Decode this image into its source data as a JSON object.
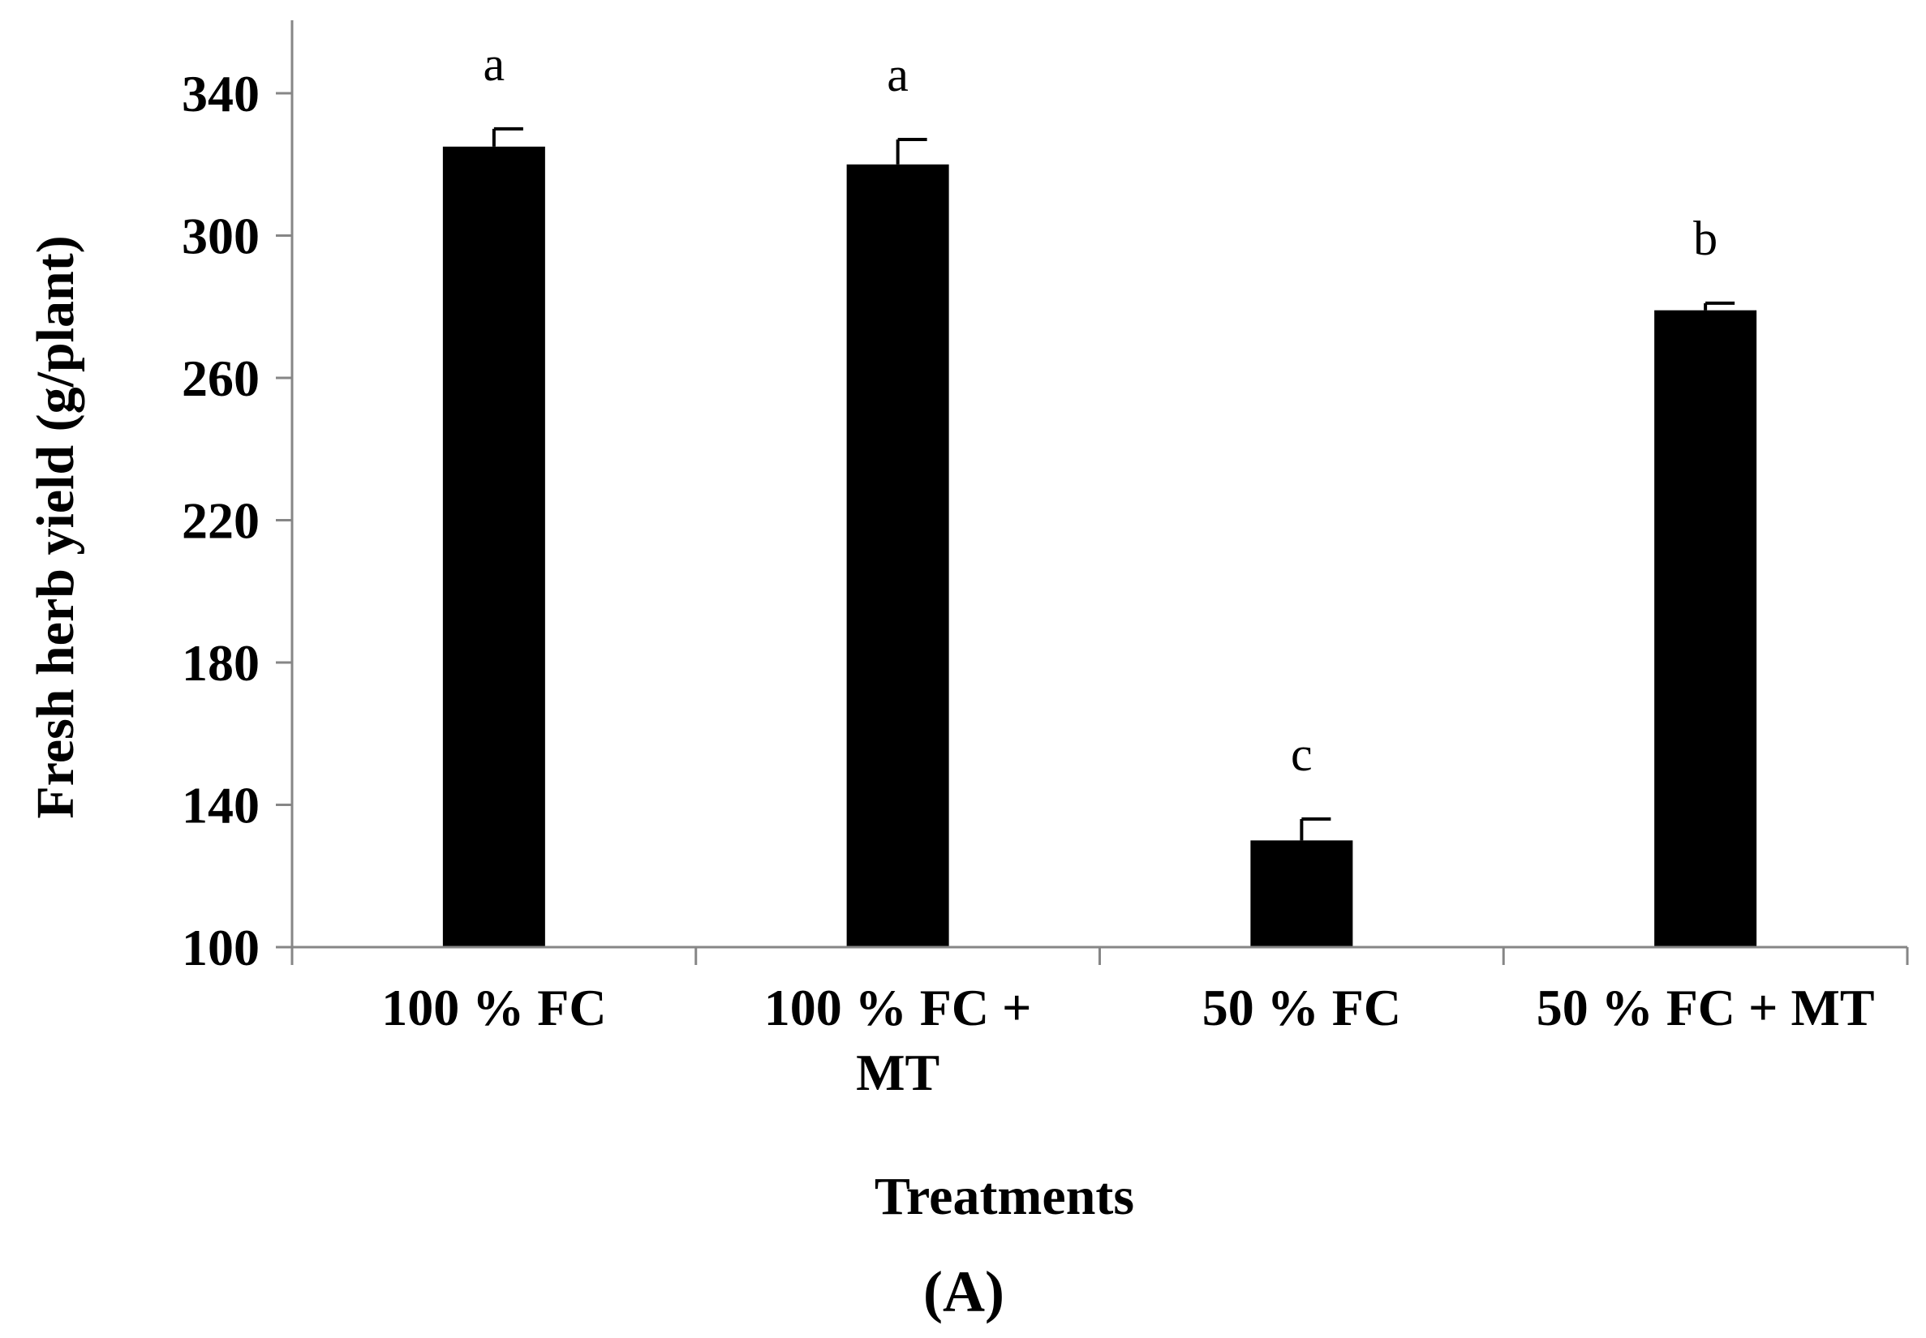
{
  "chart_data": {
    "type": "bar",
    "title": "",
    "xlabel": "Treatments",
    "ylabel": "Fresh herb yield (g/plant)",
    "panel_label": "(A)",
    "categories": [
      "100 % FC",
      "100 % FC + MT",
      "50 % FC",
      "50 % FC + MT"
    ],
    "category_lines": [
      [
        "100 % FC"
      ],
      [
        "100 % FC +",
        "MT"
      ],
      [
        "50 % FC"
      ],
      [
        "50 % FC + MT"
      ]
    ],
    "values": [
      325,
      320,
      130,
      279
    ],
    "errors": [
      5,
      7,
      6,
      2
    ],
    "significance": [
      "a",
      "a",
      "c",
      "b"
    ],
    "ylim": [
      100,
      360
    ],
    "yticks": [
      100,
      140,
      180,
      220,
      260,
      300,
      340
    ],
    "grid": false,
    "bar_color": "#000000",
    "axis_color": "#868686"
  }
}
